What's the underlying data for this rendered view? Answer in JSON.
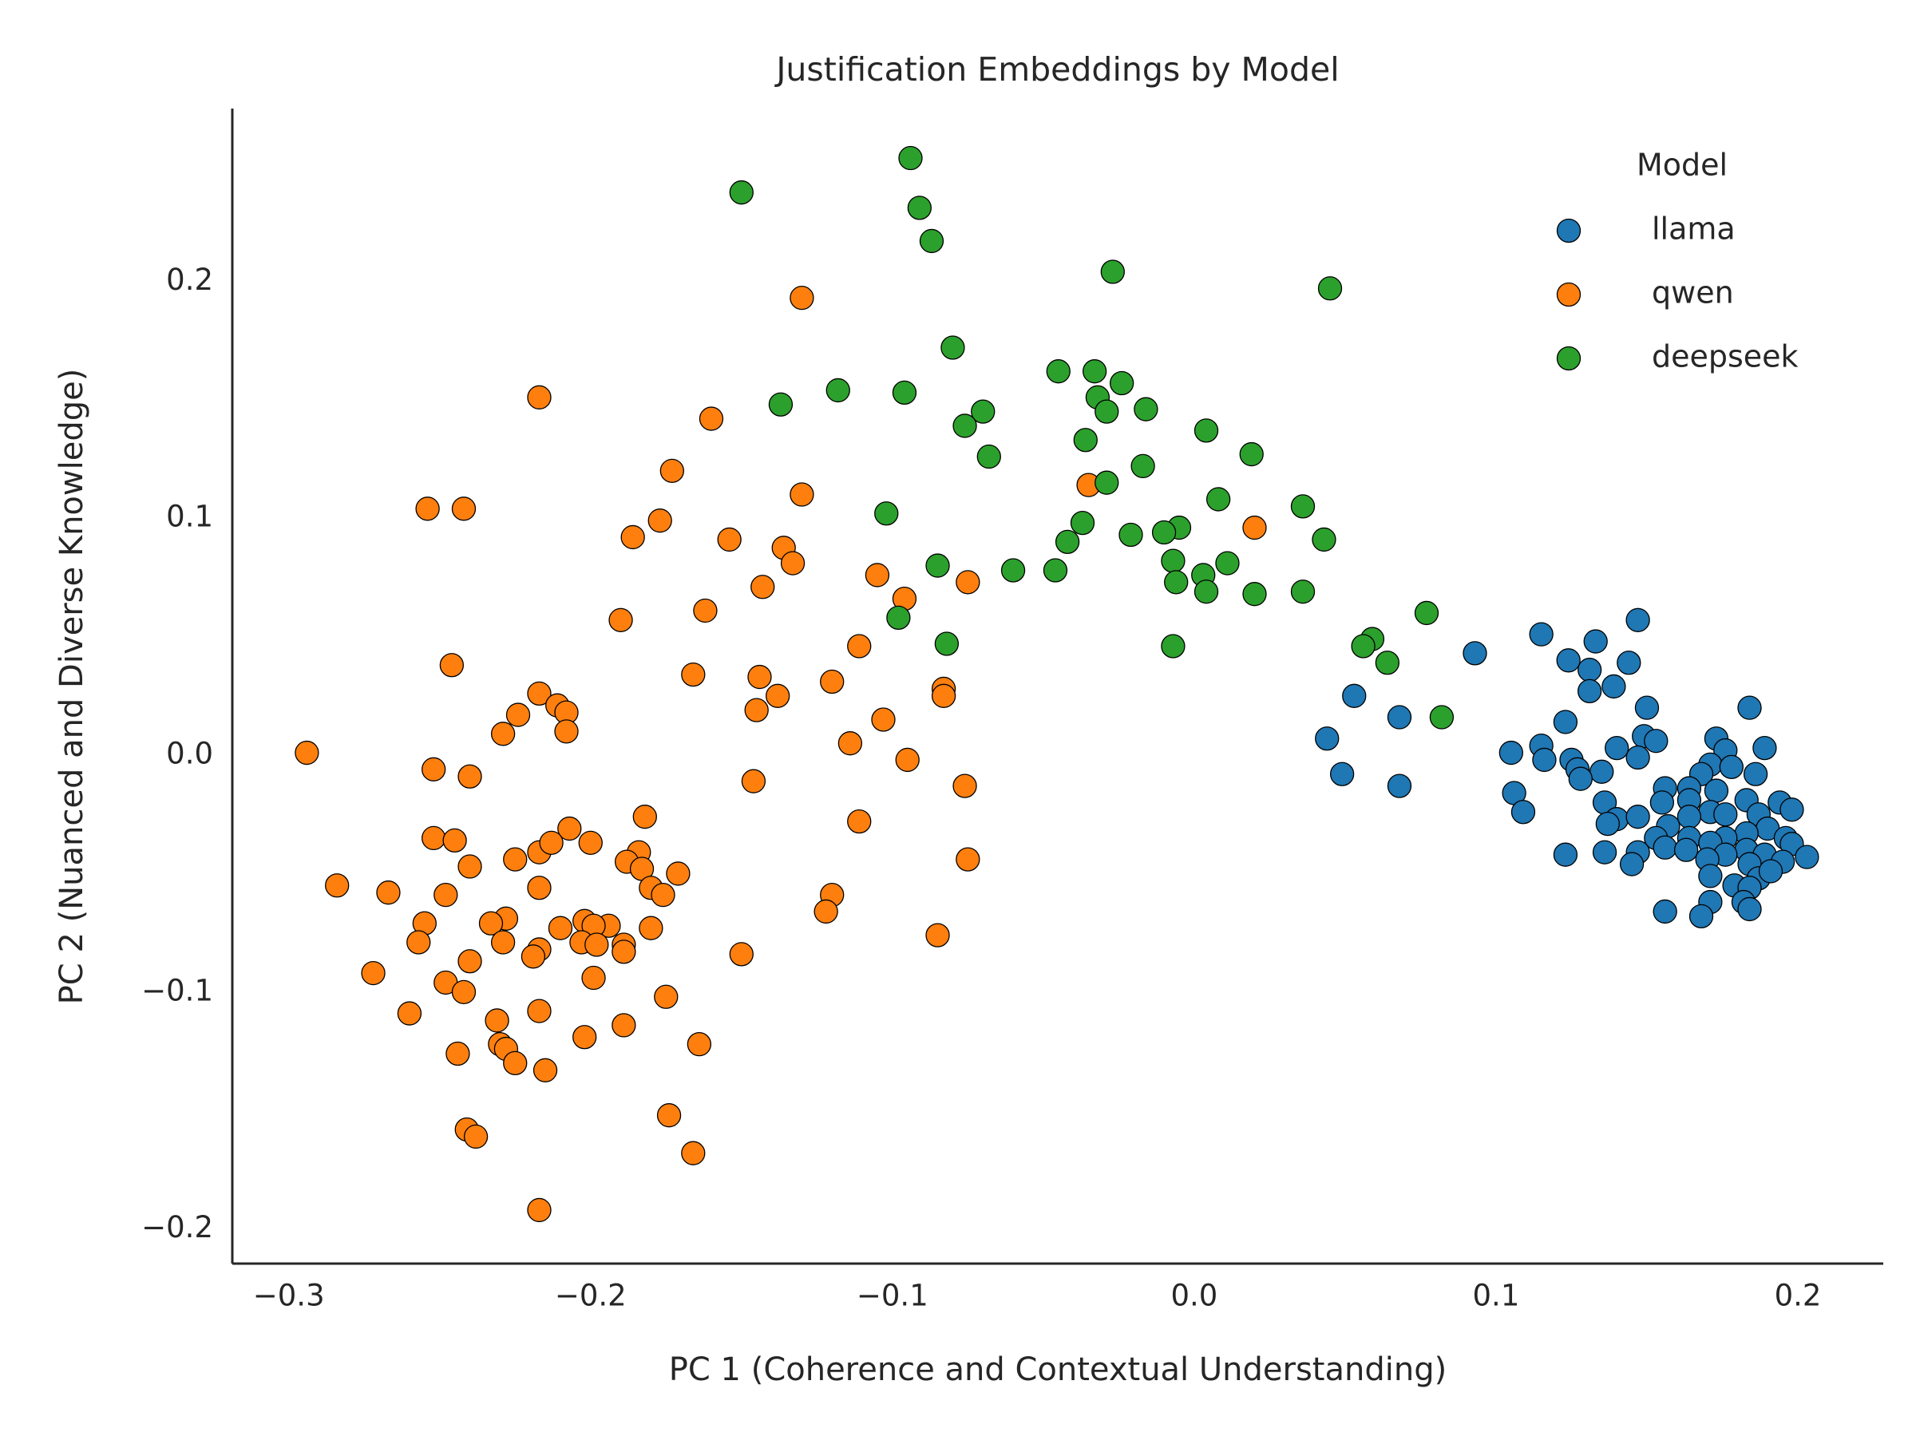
{
  "chart_data": {
    "type": "scatter",
    "title": "Justification Embeddings by Model",
    "xlabel": "PC 1 (Coherence and Contextual Understanding)",
    "ylabel": "PC 2 (Nuanced and Diverse Knowledge)",
    "xlim": [
      -0.3187,
      0.2283
    ],
    "ylim": [
      -0.2146,
      0.2729
    ],
    "xticks": [
      {
        "value": -0.3,
        "label": "−0.3"
      },
      {
        "value": -0.2,
        "label": "−0.2"
      },
      {
        "value": -0.1,
        "label": "−0.1"
      },
      {
        "value": 0,
        "label": "0.0"
      },
      0.1,
      0.2
    ],
    "yticks": [
      {
        "value": -0.2,
        "label": "−0.2"
      },
      {
        "value": -0.1,
        "label": "−0.1"
      },
      {
        "value": 0,
        "label": "0.0"
      },
      0.1,
      0.2
    ],
    "grid": false,
    "legend_title": "Model",
    "legend_position": "upper right",
    "series": [
      {
        "name": "llama",
        "color": "#1f77b4",
        "x": [
          0.093,
          0.115,
          0.147,
          0.133,
          0.124,
          0.144,
          0.131,
          0.139,
          0.131,
          0.053,
          0.068,
          0.15,
          0.184,
          0.123,
          0.044,
          0.149,
          0.173,
          0.115,
          0.105,
          0.14,
          0.153,
          0.189,
          0.176,
          0.116,
          0.125,
          0.147,
          0.127,
          0.135,
          0.171,
          0.178,
          0.186,
          0.049,
          0.128,
          0.168,
          0.068,
          0.106,
          0.156,
          0.164,
          0.173,
          0.136,
          0.155,
          0.164,
          0.194,
          0.183,
          0.109,
          0.171,
          0.198,
          0.14,
          0.147,
          0.164,
          0.176,
          0.187,
          0.137,
          0.157,
          0.19,
          0.183,
          0.153,
          0.164,
          0.176,
          0.196,
          0.156,
          0.171,
          0.136,
          0.147,
          0.163,
          0.183,
          0.198,
          0.123,
          0.176,
          0.189,
          0.203,
          0.17,
          0.195,
          0.145,
          0.184,
          0.171,
          0.187,
          0.191,
          0.179,
          0.184,
          0.171,
          0.182,
          0.156,
          0.184,
          0.168
        ],
        "values": [
          0.043,
          0.051,
          0.057,
          0.048,
          0.04,
          0.039,
          0.036,
          0.029,
          0.027,
          0.025,
          0.016,
          0.02,
          0.02,
          0.014,
          0.007,
          0.008,
          0.007,
          0.004,
          0.001,
          0.003,
          0.006,
          0.003,
          0.002,
          -0.002,
          -0.002,
          -0.001,
          -0.006,
          -0.007,
          -0.004,
          -0.005,
          -0.008,
          -0.008,
          -0.01,
          -0.008,
          -0.013,
          -0.016,
          -0.014,
          -0.014,
          -0.015,
          -0.02,
          -0.02,
          -0.019,
          -0.02,
          -0.019,
          -0.024,
          -0.024,
          -0.023,
          -0.027,
          -0.026,
          -0.026,
          -0.025,
          -0.025,
          -0.029,
          -0.03,
          -0.031,
          -0.033,
          -0.035,
          -0.035,
          -0.035,
          -0.035,
          -0.039,
          -0.037,
          -0.041,
          -0.041,
          -0.04,
          -0.04,
          -0.0375,
          -0.042,
          -0.042,
          -0.042,
          -0.043,
          -0.044,
          -0.045,
          -0.046,
          -0.046,
          -0.051,
          -0.052,
          -0.049,
          -0.055,
          -0.056,
          -0.062,
          -0.062,
          -0.066,
          -0.065,
          -0.068
        ]
      },
      {
        "name": "qwen",
        "color": "#ff7f0e",
        "x": [
          -0.13,
          -0.217,
          -0.16,
          -0.173,
          -0.13,
          -0.254,
          -0.242,
          -0.177,
          -0.186,
          -0.154,
          -0.136,
          -0.133,
          -0.035,
          0.02,
          -0.105,
          -0.075,
          -0.143,
          -0.096,
          -0.162,
          -0.19,
          -0.111,
          -0.246,
          -0.166,
          -0.144,
          -0.12,
          -0.138,
          -0.083,
          -0.083,
          -0.217,
          -0.211,
          -0.208,
          -0.224,
          -0.145,
          -0.103,
          -0.229,
          -0.208,
          -0.294,
          -0.114,
          -0.252,
          -0.24,
          -0.095,
          -0.146,
          -0.076,
          -0.182,
          -0.111,
          -0.207,
          -0.252,
          -0.245,
          -0.2,
          -0.217,
          -0.184,
          -0.213,
          -0.24,
          -0.225,
          -0.188,
          -0.075,
          -0.183,
          -0.171,
          -0.284,
          -0.18,
          -0.217,
          -0.267,
          -0.248,
          -0.176,
          -0.12,
          -0.122,
          -0.228,
          -0.233,
          -0.255,
          -0.202,
          -0.194,
          -0.21,
          -0.18,
          -0.199,
          -0.257,
          -0.229,
          -0.203,
          -0.198,
          -0.189,
          -0.085,
          -0.217,
          -0.219,
          -0.189,
          -0.15,
          -0.24,
          -0.272,
          -0.199,
          -0.248,
          -0.242,
          -0.175,
          -0.217,
          -0.26,
          -0.231,
          -0.189,
          -0.202,
          -0.23,
          -0.164,
          -0.228,
          -0.244,
          -0.225,
          -0.215,
          -0.174,
          -0.241,
          -0.238,
          -0.166,
          -0.217
        ],
        "values": [
          0.193,
          0.151,
          0.142,
          0.12,
          0.11,
          0.104,
          0.104,
          0.099,
          0.092,
          0.091,
          0.0875,
          0.081,
          0.114,
          0.096,
          0.076,
          0.073,
          0.071,
          0.066,
          0.061,
          0.057,
          0.046,
          0.038,
          0.034,
          0.033,
          0.031,
          0.025,
          0.028,
          0.025,
          0.026,
          0.021,
          0.018,
          0.017,
          0.019,
          0.015,
          0.009,
          0.01,
          0.001,
          0.005,
          -0.006,
          -0.009,
          -0.002,
          -0.011,
          -0.013,
          -0.026,
          -0.028,
          -0.031,
          -0.035,
          -0.036,
          -0.037,
          -0.041,
          -0.041,
          -0.037,
          -0.047,
          -0.044,
          -0.045,
          -0.044,
          -0.048,
          -0.05,
          -0.055,
          -0.056,
          -0.056,
          -0.058,
          -0.059,
          -0.059,
          -0.059,
          -0.066,
          -0.069,
          -0.071,
          -0.071,
          -0.07,
          -0.072,
          -0.073,
          -0.073,
          -0.072,
          -0.079,
          -0.079,
          -0.079,
          -0.08,
          -0.08,
          -0.076,
          -0.082,
          -0.085,
          -0.083,
          -0.084,
          -0.087,
          -0.092,
          -0.094,
          -0.096,
          -0.1,
          -0.102,
          -0.108,
          -0.109,
          -0.112,
          -0.114,
          -0.119,
          -0.122,
          -0.122,
          -0.124,
          -0.126,
          -0.13,
          -0.133,
          -0.152,
          -0.158,
          -0.161,
          -0.168,
          -0.192
        ]
      },
      {
        "name": "deepseek",
        "color": "#2ca02c",
        "x": [
          -0.15,
          -0.094,
          -0.091,
          -0.087,
          -0.027,
          0.045,
          -0.08,
          -0.045,
          -0.033,
          -0.024,
          -0.032,
          -0.029,
          -0.016,
          -0.118,
          -0.096,
          -0.137,
          -0.07,
          -0.076,
          -0.036,
          0.004,
          -0.068,
          0.019,
          -0.017,
          -0.029,
          0.008,
          -0.102,
          0.036,
          -0.037,
          -0.005,
          -0.01,
          -0.042,
          -0.021,
          0.043,
          -0.007,
          -0.085,
          -0.06,
          -0.046,
          0.011,
          0.003,
          -0.006,
          0.004,
          0.02,
          0.036,
          0.077,
          -0.098,
          -0.082,
          -0.007,
          0.059,
          0.056,
          0.064,
          0.082
        ],
        "values": [
          0.2375,
          0.252,
          0.231,
          0.217,
          0.204,
          0.197,
          0.172,
          0.162,
          0.162,
          0.157,
          0.151,
          0.145,
          0.146,
          0.154,
          0.153,
          0.148,
          0.145,
          0.139,
          0.133,
          0.137,
          0.126,
          0.127,
          0.122,
          0.115,
          0.108,
          0.102,
          0.105,
          0.098,
          0.096,
          0.094,
          0.09,
          0.093,
          0.091,
          0.082,
          0.08,
          0.078,
          0.078,
          0.081,
          0.076,
          0.073,
          0.069,
          0.068,
          0.069,
          0.06,
          0.058,
          0.047,
          0.046,
          0.049,
          0.046,
          0.039,
          0.016
        ]
      }
    ]
  }
}
